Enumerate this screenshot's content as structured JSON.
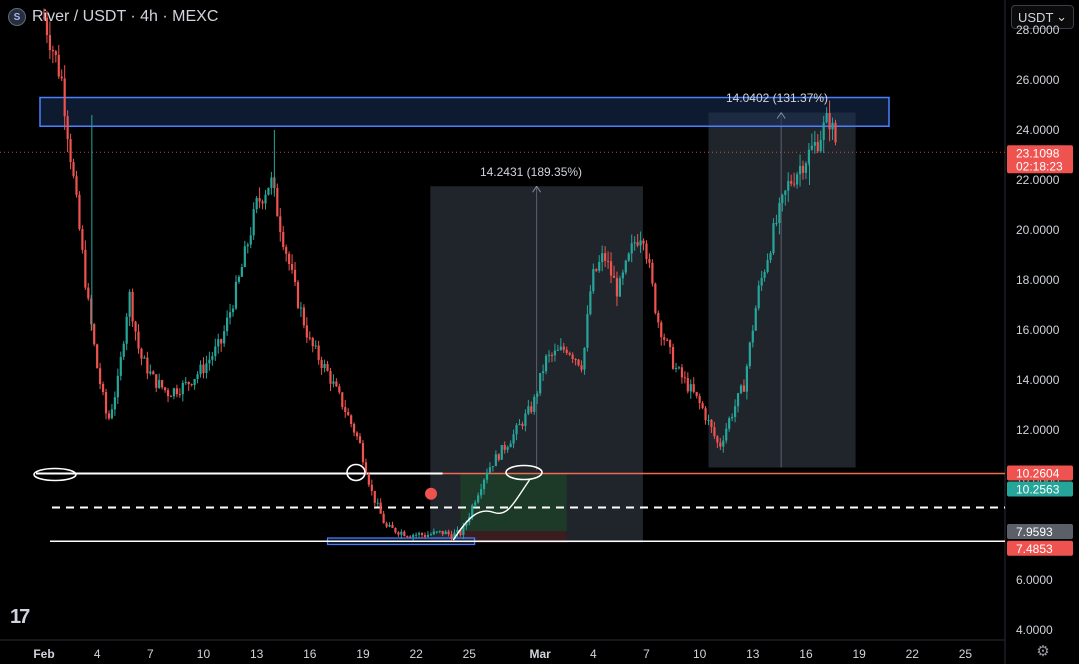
{
  "header": {
    "pair": "River / USDT · 4h · MEXC",
    "logo_letter": "S"
  },
  "currency_select": {
    "value": "USDT"
  },
  "branding": {
    "logo_text": "17"
  },
  "colors": {
    "up": "#26a69a",
    "down": "#ef5350",
    "box_blue": "#4a80ff",
    "range_box": "#262a33",
    "green_zone": "#1e3b27",
    "red_zone": "#3b1d1f"
  },
  "chart_data": {
    "type": "candlestick",
    "ylim": [
      3.6,
      29.2
    ],
    "y_ticks": [
      "28.0000",
      "26.0000",
      "24.0000",
      "22.0000",
      "20.0000",
      "18.0000",
      "16.0000",
      "14.0000",
      "12.0000",
      "10.0000",
      "8.0000",
      "6.0000",
      "4.0000"
    ],
    "x_ticks": [
      "Feb",
      "4",
      "7",
      "10",
      "13",
      "16",
      "19",
      "22",
      "25",
      "Mar",
      "4",
      "7",
      "10",
      "13",
      "16",
      "19",
      "22",
      "25"
    ],
    "price_labels": [
      {
        "value": 23.1098,
        "text": "23.1098",
        "sub": "02:18:23",
        "color": "#ef5350"
      },
      {
        "value": 10.2604,
        "text": "10.2604",
        "color": "#ef5350"
      },
      {
        "value": 10.2563,
        "text": "10.2563",
        "color": "#26a69a"
      },
      {
        "value": 7.9593,
        "text": "7.9593",
        "color": "#5b5f68"
      },
      {
        "value": 7.4853,
        "text": "7.4853",
        "color": "#ef5350"
      }
    ],
    "annotations": [
      {
        "text": "14.2431 (189.35%)"
      },
      {
        "text": "14.0402 (131.37%)"
      }
    ],
    "levels": [
      10.26,
      8.9,
      7.55
    ],
    "price_path": [
      [
        0.0,
        28.5
      ],
      [
        1.0,
        26.0
      ],
      [
        2.0,
        20.0
      ],
      [
        2.5,
        17.0
      ],
      [
        3.0,
        14.5
      ],
      [
        3.6,
        12.3
      ],
      [
        4.2,
        14.0
      ],
      [
        4.8,
        17.5
      ],
      [
        5.4,
        15.0
      ],
      [
        6.2,
        14.0
      ],
      [
        7.0,
        13.5
      ],
      [
        8.0,
        13.8
      ],
      [
        9.0,
        14.5
      ],
      [
        10.0,
        15.5
      ],
      [
        11.0,
        18.0
      ],
      [
        12.0,
        21.0
      ],
      [
        12.8,
        22.0
      ],
      [
        13.4,
        20.0
      ],
      [
        14.2,
        17.5
      ],
      [
        15.0,
        15.5
      ],
      [
        16.0,
        14.3
      ],
      [
        17.0,
        12.8
      ],
      [
        17.8,
        11.5
      ],
      [
        18.5,
        9.5
      ],
      [
        19.3,
        8.1
      ],
      [
        20.5,
        7.85
      ],
      [
        21.5,
        7.8
      ],
      [
        22.5,
        7.9
      ],
      [
        23.0,
        7.8
      ],
      [
        23.6,
        7.9
      ],
      [
        24.3,
        9.2
      ],
      [
        25.0,
        10.4
      ],
      [
        26.5,
        11.8
      ],
      [
        27.6,
        13.0
      ],
      [
        28.3,
        14.8
      ],
      [
        29.5,
        15.3
      ],
      [
        30.4,
        14.6
      ],
      [
        30.9,
        18.0
      ],
      [
        31.6,
        19.0
      ],
      [
        32.4,
        17.5
      ],
      [
        33.3,
        19.5
      ],
      [
        33.8,
        20.0
      ],
      [
        34.6,
        16.5
      ],
      [
        35.6,
        14.5
      ],
      [
        36.6,
        13.5
      ],
      [
        37.2,
        12.8
      ],
      [
        38.1,
        11.3
      ],
      [
        38.6,
        12.3
      ],
      [
        39.5,
        13.8
      ],
      [
        40.3,
        17.5
      ],
      [
        41.2,
        20.0
      ],
      [
        42.0,
        21.8
      ],
      [
        42.8,
        22.7
      ],
      [
        43.6,
        23.5
      ],
      [
        44.3,
        24.5
      ],
      [
        44.8,
        23.2
      ]
    ],
    "spikes": [
      [
        2.7,
        24.6
      ],
      [
        13.0,
        24.0
      ],
      [
        43.2,
        21.8
      ]
    ]
  }
}
